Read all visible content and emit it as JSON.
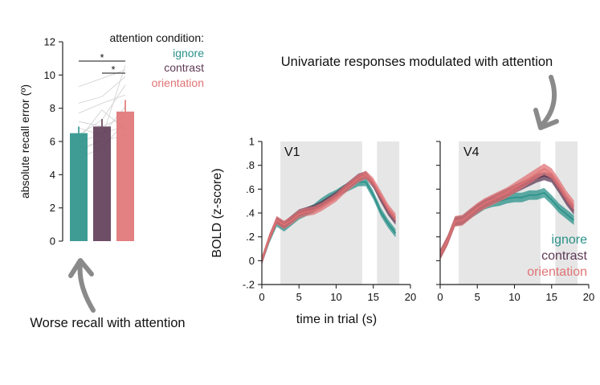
{
  "colors": {
    "ignore": "#2a9189",
    "contrast": "#5e3a55",
    "orientation": "#e07274",
    "shade": "#e6e6e6",
    "annotation_arrow": "#8a8a8a"
  },
  "annotations": {
    "top_text": "Univariate responses modulated with attention",
    "bottom_text": "Worse recall with attention"
  },
  "chart_data": [
    {
      "type": "bar",
      "title": "",
      "ylabel": "absolute recall error (º)",
      "ylim": [
        0,
        12
      ],
      "yticks": [
        0,
        2,
        4,
        6,
        8,
        10,
        12
      ],
      "legend_title": "attention condition:",
      "categories": [
        "ignore",
        "contrast",
        "orientation"
      ],
      "values": [
        6.5,
        6.9,
        7.8
      ],
      "errors": [
        0.4,
        0.45,
        0.7
      ],
      "significance": [
        "*",
        "*"
      ],
      "subject_lines": [
        [
          5.0,
          5.6,
          7.2
        ],
        [
          5.3,
          6.2,
          10.6
        ],
        [
          5.6,
          6.0,
          6.4
        ],
        [
          5.9,
          6.5,
          6.9
        ],
        [
          6.1,
          7.9,
          6.7
        ],
        [
          6.4,
          7.3,
          9.4
        ],
        [
          6.8,
          6.4,
          8.1
        ],
        [
          7.2,
          6.9,
          7.5
        ],
        [
          7.7,
          8.3,
          8.8
        ],
        [
          8.3,
          8.7,
          9.9
        ],
        [
          9.3,
          9.8,
          10.3
        ]
      ]
    },
    {
      "type": "line",
      "panel_label": "V1",
      "ylabel": "BOLD (z-score)",
      "xlabel": "time in trial (s)",
      "xlim": [
        0,
        20
      ],
      "ylim": [
        -0.2,
        1
      ],
      "xticks": [
        0,
        5,
        10,
        15,
        20
      ],
      "yticks": [
        -0.2,
        0,
        0.2,
        0.4,
        0.6,
        0.8,
        1
      ],
      "shaded_windows": [
        [
          2.5,
          13.5
        ],
        [
          15.5,
          18.5
        ]
      ],
      "x": [
        0,
        1,
        2,
        3,
        4,
        5,
        6,
        7,
        8,
        9,
        10,
        11,
        12,
        13,
        14,
        15,
        16,
        17,
        18
      ],
      "series": [
        {
          "name": "ignore",
          "values": [
            0.0,
            0.18,
            0.32,
            0.28,
            0.33,
            0.38,
            0.41,
            0.44,
            0.49,
            0.53,
            0.56,
            0.6,
            0.63,
            0.66,
            0.66,
            0.55,
            0.41,
            0.31,
            0.23
          ],
          "band": 0.035
        },
        {
          "name": "contrast",
          "values": [
            0.0,
            0.19,
            0.34,
            0.3,
            0.35,
            0.4,
            0.42,
            0.44,
            0.47,
            0.51,
            0.55,
            0.6,
            0.65,
            0.7,
            0.72,
            0.64,
            0.52,
            0.41,
            0.33
          ],
          "band": 0.03
        },
        {
          "name": "orientation",
          "values": [
            0.0,
            0.19,
            0.34,
            0.3,
            0.34,
            0.39,
            0.41,
            0.42,
            0.45,
            0.49,
            0.53,
            0.59,
            0.64,
            0.69,
            0.72,
            0.66,
            0.55,
            0.44,
            0.36
          ],
          "band": 0.035
        }
      ]
    },
    {
      "type": "line",
      "panel_label": "V4",
      "xlabel": "",
      "xlim": [
        0,
        20
      ],
      "ylim": [
        -0.2,
        1
      ],
      "xticks": [
        0,
        5,
        10,
        15,
        20
      ],
      "shaded_windows": [
        [
          2.5,
          13.5
        ],
        [
          15.5,
          18.5
        ]
      ],
      "x": [
        0,
        1,
        2,
        3,
        4,
        5,
        6,
        7,
        8,
        9,
        10,
        11,
        12,
        13,
        14,
        15,
        16,
        17,
        18
      ],
      "legend": [
        "ignore",
        "contrast",
        "orientation"
      ],
      "series": [
        {
          "name": "ignore",
          "values": [
            0.05,
            0.17,
            0.33,
            0.34,
            0.39,
            0.43,
            0.47,
            0.49,
            0.5,
            0.52,
            0.53,
            0.53,
            0.55,
            0.55,
            0.57,
            0.51,
            0.44,
            0.39,
            0.34
          ],
          "band": 0.04
        },
        {
          "name": "contrast",
          "values": [
            0.05,
            0.17,
            0.33,
            0.34,
            0.39,
            0.44,
            0.48,
            0.51,
            0.54,
            0.57,
            0.6,
            0.63,
            0.66,
            0.69,
            0.71,
            0.69,
            0.6,
            0.5,
            0.42
          ],
          "band": 0.035
        },
        {
          "name": "orientation",
          "values": [
            0.05,
            0.17,
            0.33,
            0.34,
            0.39,
            0.44,
            0.48,
            0.51,
            0.54,
            0.57,
            0.61,
            0.65,
            0.69,
            0.73,
            0.77,
            0.73,
            0.64,
            0.54,
            0.46
          ],
          "band": 0.045
        }
      ]
    }
  ]
}
